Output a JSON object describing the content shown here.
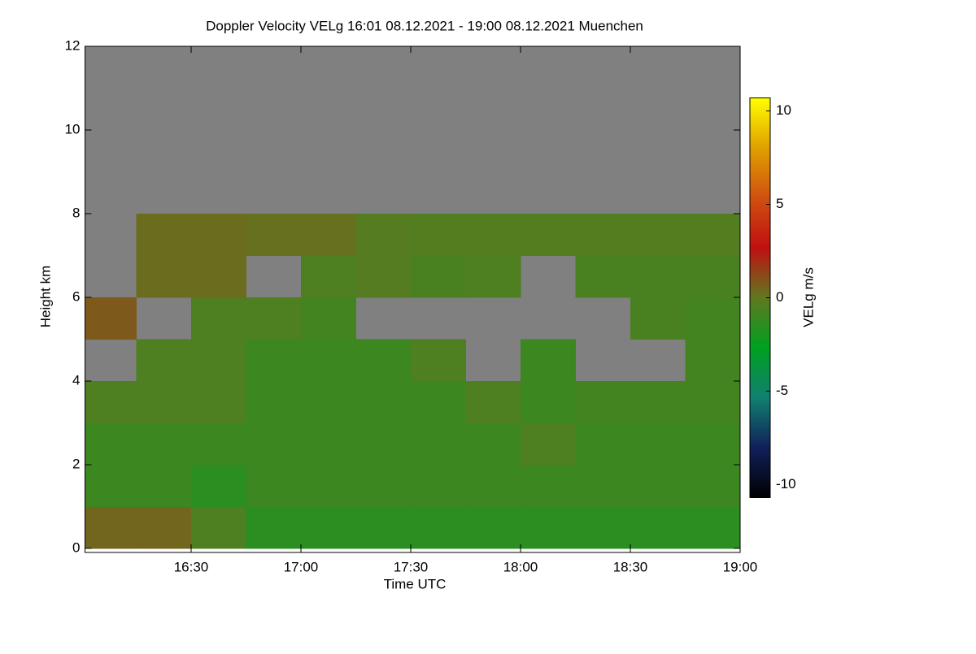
{
  "chart_data": {
    "type": "heatmap",
    "title": "Doppler Velocity VELg   16:01 08.12.2021 - 19:00 08.12.2021 Muenchen",
    "x_label": "Time UTC",
    "y_label": "Height km",
    "colorbar_label": "VELg m/s",
    "xbins": [
      16.0167,
      16.25,
      16.5,
      16.75,
      17.0,
      17.25,
      17.5,
      17.75,
      18.0,
      18.25,
      18.5,
      18.75,
      19.0
    ],
    "ybins": [
      0,
      1,
      2,
      3,
      4,
      5,
      6,
      7,
      8,
      9,
      10,
      11,
      12
    ],
    "values": [
      [
        0.5,
        0.5,
        -0.5,
        -1.5,
        -1.5,
        -1.5,
        -1.5,
        -1.5,
        -1.5,
        -1.5,
        -1.5,
        -1.5
      ],
      [
        -1,
        -1,
        -1.5,
        -1,
        -1,
        -1,
        -1,
        -1,
        -1,
        -1,
        -1,
        -1
      ],
      [
        -1,
        -1,
        -1,
        -1,
        -1,
        -1,
        -1,
        -1,
        -0.5,
        -1,
        -1,
        -1
      ],
      [
        -0.5,
        -0.5,
        -0.5,
        -1,
        -1,
        -1,
        -1,
        -0.5,
        -1,
        -0.8,
        -0.8,
        -0.8
      ],
      [
        null,
        -0.5,
        -0.5,
        -1,
        -1,
        -1,
        -0.5,
        null,
        -1,
        null,
        null,
        -0.8
      ],
      [
        0.8,
        null,
        -0.5,
        -0.5,
        -0.8,
        null,
        null,
        null,
        null,
        null,
        -0.6,
        -0.8
      ],
      [
        null,
        0.3,
        0.3,
        null,
        -0.5,
        -0.3,
        -0.6,
        -0.5,
        null,
        -0.6,
        -0.6,
        -0.6
      ],
      [
        null,
        0.3,
        0.3,
        0.2,
        0.2,
        -0.3,
        -0.4,
        -0.4,
        -0.4,
        -0.4,
        -0.4,
        -0.4
      ],
      [
        null,
        null,
        null,
        null,
        null,
        null,
        null,
        null,
        null,
        null,
        null,
        null
      ],
      [
        null,
        null,
        null,
        null,
        null,
        null,
        null,
        null,
        null,
        null,
        null,
        null
      ],
      [
        null,
        null,
        null,
        null,
        null,
        null,
        null,
        null,
        null,
        null,
        null,
        null
      ],
      [
        null,
        null,
        null,
        null,
        null,
        null,
        null,
        null,
        null,
        null,
        null,
        null
      ]
    ],
    "xlim": [
      16.0167,
      19.0
    ],
    "xticks": [
      {
        "value": 16.5,
        "label": "16:30"
      },
      {
        "value": 17.0,
        "label": "17:00"
      },
      {
        "value": 17.5,
        "label": "17:30"
      },
      {
        "value": 18.0,
        "label": "18:00"
      },
      {
        "value": 18.5,
        "label": "18:30"
      },
      {
        "value": 19.0,
        "label": "19:00"
      }
    ],
    "ylim": [
      0,
      12
    ],
    "yticks": [
      0,
      2,
      4,
      6,
      8,
      10,
      12
    ],
    "zlim": [
      -10.7,
      10.7
    ],
    "zticks": [
      -10,
      -5,
      0,
      5,
      10
    ],
    "colormap": [
      "#000000",
      "#10205a",
      "#108070",
      "#00a020",
      "#607820",
      "#c01010",
      "#d05010",
      "#e0a000",
      "#ffff00"
    ],
    "missing_color": "#808080"
  }
}
